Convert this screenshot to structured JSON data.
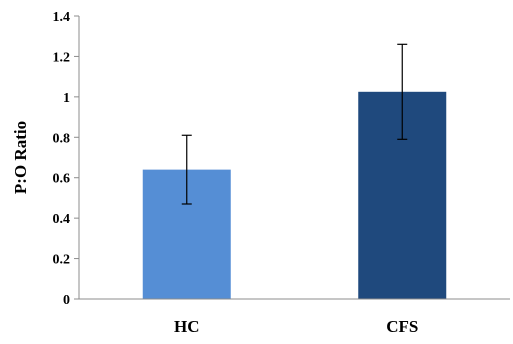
{
  "chart_data": {
    "type": "bar",
    "categories": [
      "HC",
      "CFS"
    ],
    "values": [
      0.64,
      1.025
    ],
    "error": [
      0.17,
      0.235
    ],
    "colors": [
      "#558ED5",
      "#1F497D"
    ],
    "title": "",
    "xlabel": "",
    "ylabel": "P:O Ratio",
    "ylim": [
      0,
      1.4
    ],
    "yticks": [
      0,
      0.2,
      0.4,
      0.6,
      0.8,
      1,
      1.2,
      1.4
    ],
    "ytick_labels": [
      "0",
      "0.2",
      "0.4",
      "0.6",
      "0.8",
      "1",
      "1.2",
      "1.4"
    ],
    "grid": false,
    "legend": "none"
  }
}
